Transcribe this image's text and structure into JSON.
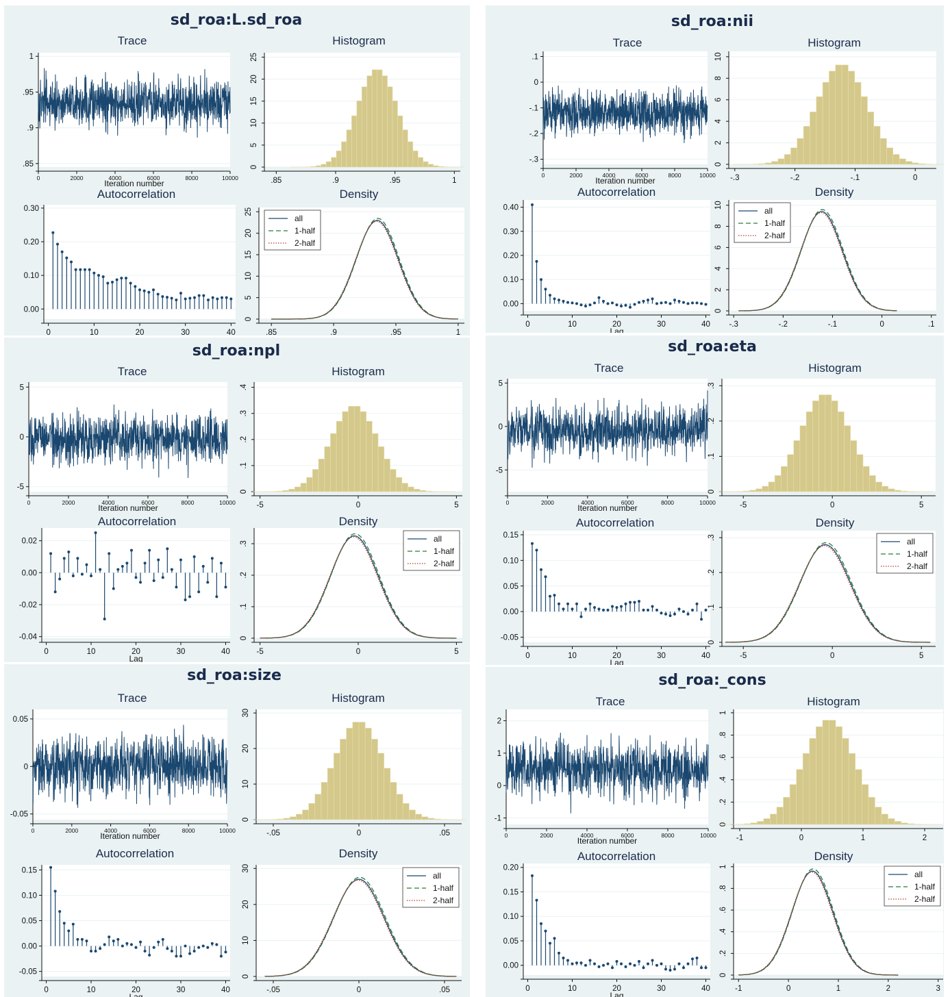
{
  "chart_data": [
    {
      "type": "diagnostics",
      "title": "sd_roa:L.sd_roa",
      "panels": {
        "trace": {
          "title": "Trace",
          "xlabel": "Iteration number",
          "xticks": [
            0,
            2000,
            4000,
            6000,
            8000,
            10000
          ],
          "yticks": [
            0.85,
            0.9,
            0.95,
            1
          ],
          "ylim": [
            0.845,
            1.005
          ],
          "mean": 0.935,
          "sd": 0.017,
          "min": 0.85,
          "max": 1.0
        },
        "histogram": {
          "title": "Histogram",
          "xticks": [
            0.85,
            0.9,
            0.95,
            1
          ],
          "xlim": [
            0.84,
            1.005
          ],
          "yticks": [
            0,
            5,
            10,
            15,
            20,
            25
          ],
          "ylim": [
            0,
            26
          ],
          "mean": 0.935,
          "sd": 0.017,
          "peak": 23
        },
        "autocorrelation": {
          "title": "Autocorrelation",
          "xlabel": "Lag",
          "xticks": [
            0,
            10,
            20,
            30,
            40
          ],
          "yticks": [
            0.0,
            0.1,
            0.2,
            0.3
          ],
          "ytick_labels": [
            "0.00",
            "0.10",
            "0.20",
            "0.30"
          ],
          "ylim": [
            -0.03,
            0.31
          ],
          "values": [
            0.227,
            0.193,
            0.17,
            0.152,
            0.14,
            0.117,
            0.117,
            0.117,
            0.117,
            0.107,
            0.1,
            0.096,
            0.077,
            0.08,
            0.087,
            0.092,
            0.092,
            0.077,
            0.067,
            0.057,
            0.054,
            0.05,
            0.057,
            0.044,
            0.037,
            0.035,
            0.032,
            0.027,
            0.047,
            0.03,
            0.032,
            0.034,
            0.04,
            0.04,
            0.027,
            0.034,
            0.03,
            0.034,
            0.034,
            0.03
          ]
        },
        "density": {
          "title": "Density",
          "xticks": [
            0.85,
            0.9,
            0.95,
            1
          ],
          "xlim": [
            0.84,
            1.005
          ],
          "yticks": [
            0,
            5,
            10,
            15,
            20,
            25
          ],
          "ylim": [
            0,
            26
          ],
          "mean": 0.935,
          "sd": 0.017,
          "peak": 23,
          "range": [
            0.85,
            1.0
          ],
          "legend": [
            "all",
            "1-half",
            "2-half"
          ],
          "legend_position": "top-left"
        }
      }
    },
    {
      "type": "diagnostics",
      "title": "sd_roa:nii",
      "panels": {
        "trace": {
          "title": "Trace",
          "xlabel": "Iteration number",
          "xticks": [
            0,
            2000,
            4000,
            6000,
            8000,
            10000
          ],
          "yticks": [
            -0.3,
            -0.2,
            -0.1,
            0,
            0.1
          ],
          "ylim": [
            -0.32,
            0.12
          ],
          "mean": -0.12,
          "sd": 0.042,
          "min": -0.28,
          "max": 0.02
        },
        "histogram": {
          "title": "Histogram",
          "xticks": [
            -0.3,
            -0.2,
            -0.1,
            0
          ],
          "xlim": [
            -0.31,
            0.035
          ],
          "yticks": [
            0,
            2,
            4,
            6,
            8,
            10
          ],
          "ylim": [
            0,
            10.5
          ],
          "mean": -0.122,
          "sd": 0.042,
          "peak": 9.6
        },
        "autocorrelation": {
          "title": "Autocorrelation",
          "xlabel": "Lag",
          "xticks": [
            0,
            10,
            20,
            30,
            40
          ],
          "yticks": [
            0.0,
            0.1,
            0.2,
            0.3,
            0.4
          ],
          "ytick_labels": [
            "0.00",
            "0.10",
            "0.20",
            "0.30",
            "0.40"
          ],
          "ylim": [
            -0.03,
            0.43
          ],
          "values": [
            0.41,
            0.175,
            0.1,
            0.06,
            0.035,
            0.02,
            0.015,
            0.01,
            0.005,
            0.003,
            0.0,
            -0.005,
            -0.01,
            -0.005,
            0.003,
            0.025,
            0.01,
            0.0,
            0.003,
            -0.005,
            -0.01,
            -0.007,
            -0.015,
            -0.003,
            0.005,
            0.01,
            0.015,
            0.02,
            0.0,
            0.003,
            0.005,
            0.0,
            0.015,
            0.01,
            0.005,
            0.0,
            0.003,
            0.003,
            0.0,
            -0.003
          ]
        },
        "density": {
          "title": "Density",
          "xticks": [
            -0.3,
            -0.2,
            -0.1,
            0,
            0.1
          ],
          "xlim": [
            -0.31,
            0.11
          ],
          "yticks": [
            0,
            2,
            4,
            6,
            8,
            10
          ],
          "ylim": [
            0,
            10.5
          ],
          "mean": -0.122,
          "sd": 0.042,
          "peak": 9.4,
          "range": [
            -0.29,
            0.03
          ],
          "legend": [
            "all",
            "1-half",
            "2-half"
          ],
          "legend_position": "top-left"
        }
      }
    },
    {
      "type": "diagnostics",
      "title": "sd_roa:npl",
      "panels": {
        "trace": {
          "title": "Trace",
          "xlabel": "Iteration number",
          "xticks": [
            0,
            2000,
            4000,
            6000,
            8000,
            10000
          ],
          "yticks": [
            -5,
            0,
            5
          ],
          "ylim": [
            -5.5,
            5.5
          ],
          "mean": -0.2,
          "sd": 1.2,
          "min": -4.5,
          "max": 4.5
        },
        "histogram": {
          "title": "Histogram",
          "xticks": [
            -5,
            0,
            5
          ],
          "xlim": [
            -5.3,
            5.3
          ],
          "yticks": [
            0,
            0.1,
            0.2,
            0.3,
            0.4
          ],
          "ylim": [
            0,
            0.42
          ],
          "mean": -0.2,
          "sd": 1.2,
          "peak": 0.34
        },
        "autocorrelation": {
          "title": "Autocorrelation",
          "xlabel": "Lag",
          "xticks": [
            0,
            10,
            20,
            30,
            40
          ],
          "yticks": [
            -0.04,
            -0.02,
            0.0,
            0.02
          ],
          "ytick_labels": [
            "-0.04",
            "-0.02",
            "0.00",
            "0.02"
          ],
          "ylim": [
            -0.041,
            0.028
          ],
          "values": [
            0.012,
            -0.012,
            -0.004,
            0.009,
            0.013,
            -0.002,
            0.009,
            -0.001,
            0.005,
            -0.002,
            0.025,
            0.002,
            -0.029,
            0.012,
            -0.01,
            0.002,
            0.004,
            0.006,
            0.014,
            -0.003,
            -0.006,
            0.006,
            0.014,
            -0.005,
            0.008,
            -0.003,
            0.015,
            0.002,
            -0.009,
            0.008,
            -0.017,
            -0.015,
            0.01,
            -0.012,
            0.004,
            -0.006,
            0.009,
            -0.015,
            0.006,
            -0.009
          ]
        },
        "density": {
          "title": "Density",
          "xticks": [
            -5,
            0,
            5
          ],
          "xlim": [
            -5.3,
            5.3
          ],
          "yticks": [
            0,
            0.1,
            0.2,
            0.3
          ],
          "ylim": [
            0,
            0.35
          ],
          "mean": -0.2,
          "sd": 1.22,
          "peak": 0.325,
          "range": [
            -5,
            5
          ],
          "legend": [
            "all",
            "1-half",
            "2-half"
          ],
          "legend_position": "top-right"
        }
      }
    },
    {
      "type": "diagnostics",
      "title": "sd_roa:eta",
      "panels": {
        "trace": {
          "title": "Trace",
          "xlabel": "Iteration number",
          "xticks": [
            0,
            2000,
            4000,
            6000,
            8000,
            10000
          ],
          "yticks": [
            -5,
            0,
            5
          ],
          "ylim": [
            -7.5,
            5.5
          ],
          "mean": -0.5,
          "sd": 1.4,
          "min": -6.0,
          "max": 5.0
        },
        "histogram": {
          "title": "Histogram",
          "xticks": [
            -5,
            0,
            5
          ],
          "xlim": [
            -6.2,
            5.8
          ],
          "yticks": [
            0,
            0.1,
            0.2,
            0.3
          ],
          "ylim": [
            0,
            0.32
          ],
          "mean": -0.4,
          "sd": 1.4,
          "peak": 0.285
        },
        "autocorrelation": {
          "title": "Autocorrelation",
          "xlabel": "Lag",
          "xticks": [
            0,
            10,
            20,
            30,
            40
          ],
          "yticks": [
            -0.05,
            0.0,
            0.05,
            0.1,
            0.15
          ],
          "ytick_labels": [
            "-0.05",
            "0.00",
            "0.05",
            "0.10",
            "0.15"
          ],
          "ylim": [
            -0.06,
            0.158
          ],
          "values": [
            0.133,
            0.12,
            0.082,
            0.068,
            0.03,
            0.032,
            0.015,
            0.005,
            0.015,
            0.005,
            0.015,
            -0.01,
            0.005,
            0.015,
            0.008,
            0.005,
            0.003,
            0.003,
            0.01,
            0.008,
            0.01,
            0.015,
            0.018,
            0.018,
            0.02,
            0.003,
            0.003,
            0.01,
            0.003,
            -0.003,
            -0.005,
            -0.008,
            -0.005,
            0.005,
            0.0,
            -0.005,
            0.003,
            0.015,
            -0.015,
            0.003
          ]
        },
        "density": {
          "title": "Density",
          "xticks": [
            -5,
            0,
            5
          ],
          "xlim": [
            -6.2,
            5.8
          ],
          "yticks": [
            0,
            0.1,
            0.2,
            0.3
          ],
          "ylim": [
            0,
            0.32
          ],
          "mean": -0.4,
          "sd": 1.42,
          "peak": 0.28,
          "range": [
            -6,
            5.5
          ],
          "legend": [
            "all",
            "1-half",
            "2-half"
          ],
          "legend_position": "top-right"
        }
      }
    },
    {
      "type": "diagnostics",
      "title": "sd_roa:size",
      "panels": {
        "trace": {
          "title": "Trace",
          "xlabel": "Iteration number",
          "xticks": [
            0,
            2000,
            4000,
            6000,
            8000,
            10000
          ],
          "yticks": [
            -0.05,
            0,
            0.05
          ],
          "ytick_labels": [
            "-0.05",
            "0",
            "0.05"
          ],
          "ylim": [
            -0.056,
            0.06
          ],
          "mean": 0.0,
          "sd": 0.015,
          "min": -0.05,
          "max": 0.055
        },
        "histogram": {
          "title": "Histogram",
          "xticks": [
            -0.05,
            0,
            0.05
          ],
          "xlim": [
            -0.06,
            0.06
          ],
          "yticks": [
            0,
            10,
            20,
            30
          ],
          "ylim": [
            0,
            31
          ],
          "mean": 0.0,
          "sd": 0.0145,
          "peak": 28.5
        },
        "autocorrelation": {
          "title": "Autocorrelation",
          "xlabel": "Lag",
          "xticks": [
            0,
            10,
            20,
            30,
            40
          ],
          "yticks": [
            -0.05,
            0.0,
            0.05,
            0.1,
            0.15
          ],
          "ytick_labels": [
            "-0.05",
            "0.00",
            "0.05",
            "0.10",
            "0.15"
          ],
          "ylim": [
            -0.06,
            0.16
          ],
          "values": [
            0.155,
            0.108,
            0.068,
            0.045,
            0.03,
            0.043,
            0.013,
            0.013,
            0.01,
            -0.01,
            -0.01,
            -0.005,
            0.003,
            0.018,
            0.01,
            0.013,
            0.0,
            0.005,
            0.003,
            -0.003,
            0.008,
            -0.01,
            -0.018,
            -0.003,
            0.008,
            0.013,
            -0.005,
            -0.01,
            -0.02,
            -0.02,
            0.0,
            -0.015,
            -0.01,
            -0.003,
            0.0,
            -0.003,
            0.005,
            0.003,
            -0.02,
            -0.012
          ]
        },
        "density": {
          "title": "Density",
          "xticks": [
            -0.05,
            0,
            0.05
          ],
          "xlim": [
            -0.06,
            0.06
          ],
          "yticks": [
            0,
            10,
            20,
            30
          ],
          "ylim": [
            0,
            31
          ],
          "mean": 0.0,
          "sd": 0.0148,
          "peak": 27.0,
          "range": [
            -0.055,
            0.057
          ],
          "legend": [
            "all",
            "1-half",
            "2-half"
          ],
          "legend_position": "top-right"
        }
      }
    },
    {
      "type": "diagnostics",
      "title": "sd_roa:_cons",
      "panels": {
        "trace": {
          "title": "Trace",
          "xlabel": "Iteration number",
          "xticks": [
            0,
            2000,
            4000,
            6000,
            8000,
            10000
          ],
          "yticks": [
            -1,
            0,
            1,
            2
          ],
          "ylim": [
            -1.2,
            2.35
          ],
          "mean": 0.5,
          "sd": 0.42,
          "min": -1.0,
          "max": 2.2
        },
        "histogram": {
          "title": "Histogram",
          "xticks": [
            -1,
            0,
            1,
            2
          ],
          "xlim": [
            -1.1,
            2.3
          ],
          "yticks": [
            0,
            0.2,
            0.4,
            0.6,
            0.8,
            1
          ],
          "ylim": [
            0,
            1.03
          ],
          "mean": 0.45,
          "sd": 0.42,
          "peak": 0.97
        },
        "autocorrelation": {
          "title": "Autocorrelation",
          "xlabel": "Lag",
          "xticks": [
            0,
            10,
            20,
            30,
            40
          ],
          "yticks": [
            0.0,
            0.05,
            0.1,
            0.15,
            0.2
          ],
          "ytick_labels": [
            "0.00",
            "0.05",
            "0.10",
            "0.15",
            "0.20"
          ],
          "ylim": [
            -0.02,
            0.208
          ],
          "values": [
            0.183,
            0.133,
            0.085,
            0.07,
            0.045,
            0.055,
            0.025,
            0.015,
            0.01,
            0.003,
            0.005,
            0.005,
            0.0,
            0.01,
            0.003,
            -0.003,
            0.0,
            0.003,
            -0.005,
            0.008,
            0.003,
            -0.003,
            0.003,
            0.0,
            0.008,
            -0.005,
            0.003,
            0.01,
            0.0,
            0.003,
            -0.008,
            -0.01,
            -0.008,
            0.003,
            -0.005,
            0.003,
            0.013,
            0.015,
            -0.005,
            -0.005
          ]
        },
        "density": {
          "title": "Density",
          "xticks": [
            -1,
            0,
            1,
            2,
            3
          ],
          "xlim": [
            -1.1,
            3.1
          ],
          "yticks": [
            0,
            0.2,
            0.4,
            0.6,
            0.8,
            1
          ],
          "ylim": [
            0,
            1.03
          ],
          "mean": 0.48,
          "sd": 0.41,
          "peak": 0.96,
          "range": [
            -1,
            2.2
          ],
          "legend": [
            "all",
            "1-half",
            "2-half"
          ],
          "legend_position": "top-right"
        }
      }
    }
  ]
}
